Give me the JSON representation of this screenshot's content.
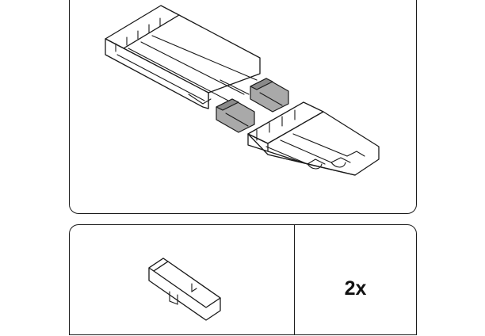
{
  "parts": {
    "quantity_label": "2x"
  },
  "illustration": {
    "rail_icon": "track-rail-icon",
    "connector_icon": "rail-connector-icon",
    "accent_gray": "#8a8a8a"
  }
}
